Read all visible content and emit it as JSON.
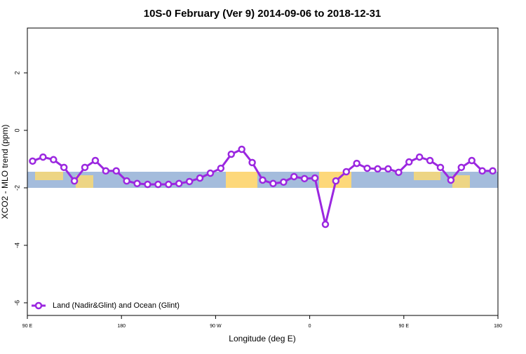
{
  "chart_data": {
    "type": "line",
    "title": "10S-0 February (Ver 9)   2014-09-06 to 2018-12-31",
    "x_label": "Longitude (deg E)",
    "y_label": "XCO2 - MLO trend (ppm)",
    "x": [
      95,
      105,
      115,
      125,
      135,
      145,
      155,
      165,
      175,
      185,
      195,
      205,
      215,
      225,
      235,
      245,
      255,
      265,
      275,
      285,
      295,
      305,
      315,
      325,
      335,
      345,
      355,
      365,
      375,
      385,
      395,
      405,
      415,
      425,
      435,
      445,
      455,
      465,
      475,
      485,
      495,
      505,
      515,
      525,
      535
    ],
    "series": [
      {
        "name": "Land (Nadir&Glint) and Ocean (Glint)",
        "color": "#9b27e0",
        "values": [
          -1.07,
          -0.93,
          -1.02,
          -1.29,
          -1.76,
          -1.29,
          -1.05,
          -1.41,
          -1.41,
          -1.76,
          -1.85,
          -1.88,
          -1.88,
          -1.88,
          -1.85,
          -1.78,
          -1.66,
          -1.49,
          -1.32,
          -0.83,
          -0.66,
          -1.12,
          -1.73,
          -1.85,
          -1.8,
          -1.61,
          -1.68,
          -1.66,
          -3.27,
          -1.76,
          -1.44,
          -1.15,
          -1.32,
          -1.34,
          -1.34,
          -1.46,
          -1.1,
          -0.93,
          -1.05,
          -1.29,
          -1.73,
          -1.29,
          -1.05,
          -1.41,
          -1.41
        ]
      }
    ],
    "xlim": [
      90,
      540
    ],
    "xticks": [
      {
        "value": 90,
        "label": "90 E"
      },
      180,
      {
        "value": 270,
        "label": "90 W"
      },
      {
        "value": 360,
        "label": "0"
      },
      {
        "value": 450,
        "label": "90 E"
      },
      {
        "value": 540,
        "label": "180"
      }
    ],
    "ylim": [
      -6.44,
      3.56
    ],
    "yticks": [
      -6,
      -4,
      -2,
      0,
      2
    ],
    "legend": "bottom-left"
  }
}
